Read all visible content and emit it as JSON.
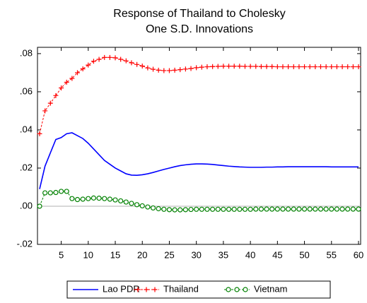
{
  "chart_data": {
    "type": "line",
    "title": [
      "Response of Thailand to Cholesky",
      "One S.D. Innovations"
    ],
    "x": [
      1,
      2,
      3,
      4,
      5,
      6,
      7,
      8,
      9,
      10,
      11,
      12,
      13,
      14,
      15,
      16,
      17,
      18,
      19,
      20,
      21,
      22,
      23,
      24,
      25,
      26,
      27,
      28,
      29,
      30,
      31,
      32,
      33,
      34,
      35,
      36,
      37,
      38,
      39,
      40,
      41,
      42,
      43,
      44,
      45,
      46,
      47,
      48,
      49,
      50,
      51,
      52,
      53,
      54,
      55,
      56,
      57,
      58,
      59,
      60
    ],
    "series": [
      {
        "name": "Lao PDR",
        "color": "#0000ff",
        "line_style": "solid",
        "marker": "none",
        "values": [
          0.009,
          0.021,
          0.028,
          0.035,
          0.036,
          0.038,
          0.0385,
          0.037,
          0.0355,
          0.033,
          0.03,
          0.027,
          0.024,
          0.022,
          0.02,
          0.0185,
          0.017,
          0.0163,
          0.0162,
          0.0165,
          0.017,
          0.0177,
          0.0185,
          0.0193,
          0.02,
          0.0207,
          0.0213,
          0.0217,
          0.022,
          0.0222,
          0.0222,
          0.0221,
          0.0219,
          0.0216,
          0.0213,
          0.021,
          0.0208,
          0.0206,
          0.0205,
          0.0204,
          0.0204,
          0.0204,
          0.0205,
          0.0205,
          0.0206,
          0.0206,
          0.0207,
          0.0207,
          0.0207,
          0.0207,
          0.0207,
          0.0207,
          0.0207,
          0.0207,
          0.0206,
          0.0206,
          0.0206,
          0.0206,
          0.0206,
          0.0206
        ]
      },
      {
        "name": "Thailand",
        "color": "#ff0000",
        "line_style": "dashed",
        "marker": "plus",
        "values": [
          0.038,
          0.05,
          0.054,
          0.058,
          0.062,
          0.065,
          0.067,
          0.07,
          0.072,
          0.074,
          0.076,
          0.077,
          0.078,
          0.078,
          0.0778,
          0.077,
          0.0762,
          0.0752,
          0.0743,
          0.0735,
          0.0725,
          0.0718,
          0.0713,
          0.0711,
          0.0711,
          0.0713,
          0.0716,
          0.0719,
          0.0722,
          0.0726,
          0.0729,
          0.0731,
          0.0732,
          0.0733,
          0.0734,
          0.0734,
          0.0734,
          0.0734,
          0.0733,
          0.0733,
          0.0733,
          0.0732,
          0.0732,
          0.0732,
          0.0731,
          0.0731,
          0.0731,
          0.0731,
          0.0731,
          0.0731,
          0.0731,
          0.0731,
          0.0731,
          0.0731,
          0.0731,
          0.0731,
          0.0731,
          0.0731,
          0.0731,
          0.0731
        ]
      },
      {
        "name": "Vietnam",
        "color": "#008000",
        "line_style": "dashed",
        "marker": "circle",
        "values": [
          0,
          0.007,
          0.007,
          0.0072,
          0.0078,
          0.0078,
          0.004,
          0.0035,
          0.0037,
          0.004,
          0.0043,
          0.0042,
          0.004,
          0.0037,
          0.0033,
          0.0028,
          0.0022,
          0.0015,
          0.0008,
          0.0002,
          -0.0004,
          -0.0009,
          -0.0013,
          -0.0016,
          -0.0018,
          -0.0019,
          -0.0019,
          -0.0018,
          -0.0017,
          -0.0016,
          -0.0016,
          -0.0016,
          -0.0016,
          -0.0016,
          -0.0016,
          -0.0016,
          -0.0016,
          -0.0016,
          -0.0016,
          -0.0016,
          -0.0015,
          -0.0015,
          -0.0015,
          -0.0015,
          -0.0015,
          -0.0015,
          -0.0015,
          -0.0015,
          -0.0015,
          -0.0015,
          -0.0015,
          -0.0015,
          -0.0015,
          -0.0015,
          -0.0015,
          -0.0015,
          -0.0015,
          -0.0015,
          -0.0015,
          -0.0015
        ]
      }
    ],
    "xlim": [
      1,
      60
    ],
    "xticks": [
      5,
      10,
      15,
      20,
      25,
      30,
      35,
      40,
      45,
      50,
      55,
      60
    ],
    "ylim": [
      -0.02,
      0.0833
    ],
    "yticks": [
      {
        "value": -0.02,
        "label": "-.02"
      },
      {
        "value": 0,
        "label": ".00"
      },
      {
        "value": 0.02,
        "label": ".02"
      },
      {
        "value": 0.04,
        "label": ".04"
      },
      {
        "value": 0.06,
        "label": ".06"
      },
      {
        "value": 0.08,
        "label": ".08"
      }
    ],
    "zero_line": true,
    "legend": "bottom"
  }
}
